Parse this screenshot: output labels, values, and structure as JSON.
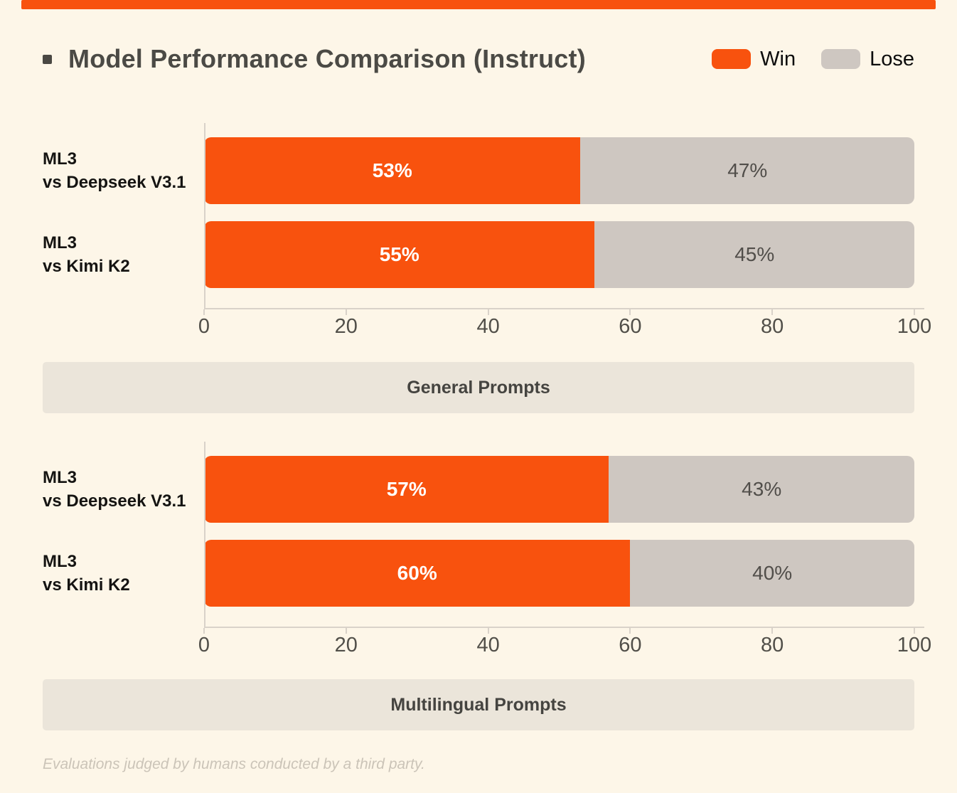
{
  "page": {
    "background_color": "#FDF6E8",
    "accent_bar_color": "#F8520E"
  },
  "header": {
    "title": "Model Performance Comparison (Instruct)"
  },
  "legend": {
    "position": "top-right",
    "items": [
      {
        "label": "Win",
        "color": "#F8520E"
      },
      {
        "label": "Lose",
        "color": "#CEC7C1"
      }
    ]
  },
  "chart_data": [
    {
      "type": "bar",
      "orientation": "horizontal",
      "stacked": true,
      "grid": false,
      "title": "General Prompts",
      "categories": [
        {
          "line1": "ML3",
          "line2": "vs Deepseek V3.1"
        },
        {
          "line1": "ML3",
          "line2": "vs Kimi K2"
        }
      ],
      "series": [
        {
          "name": "Win",
          "color": "#F8520E",
          "label_color": "#FFFFFF",
          "values": [
            53,
            55
          ],
          "labels": [
            "53%",
            "55%"
          ]
        },
        {
          "name": "Lose",
          "color": "#CEC7C1",
          "label_color": "#514E4A",
          "values": [
            47,
            45
          ],
          "labels": [
            "47%",
            "45%"
          ]
        }
      ],
      "xlim": [
        0,
        100
      ],
      "xticks": [
        0,
        20,
        40,
        60,
        80,
        100
      ]
    },
    {
      "type": "bar",
      "orientation": "horizontal",
      "stacked": true,
      "grid": false,
      "title": "Multilingual Prompts",
      "categories": [
        {
          "line1": "ML3",
          "line2": "vs Deepseek V3.1"
        },
        {
          "line1": "ML3",
          "line2": "vs Kimi K2"
        }
      ],
      "series": [
        {
          "name": "Win",
          "color": "#F8520E",
          "label_color": "#FFFFFF",
          "values": [
            57,
            60
          ],
          "labels": [
            "57%",
            "60%"
          ]
        },
        {
          "name": "Lose",
          "color": "#CEC7C1",
          "label_color": "#514E4A",
          "values": [
            43,
            40
          ],
          "labels": [
            "43%",
            "40%"
          ]
        }
      ],
      "xlim": [
        0,
        100
      ],
      "xticks": [
        0,
        20,
        40,
        60,
        80,
        100
      ]
    }
  ],
  "footnote": "Evaluations judged by humans conducted by a third party."
}
